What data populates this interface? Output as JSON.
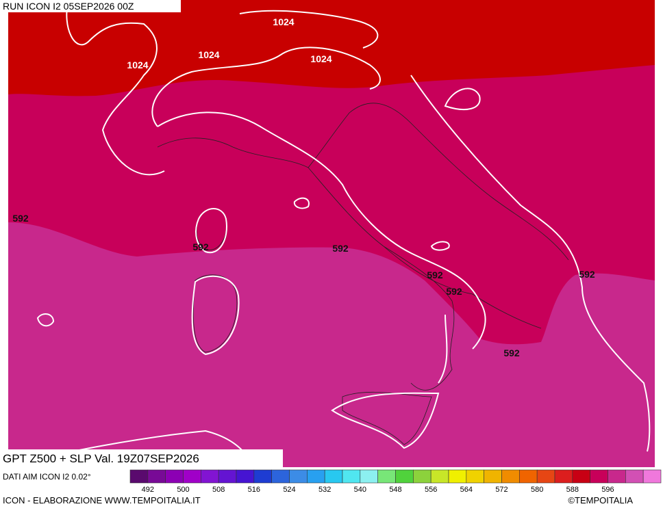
{
  "header": {
    "run": "RUN ICON I2 05SEP2026 00Z"
  },
  "map": {
    "contour_labels": [
      "1024",
      "1024",
      "1024",
      "1024",
      "592",
      "592",
      "592",
      "592",
      "592",
      "592",
      "592"
    ]
  },
  "footer": {
    "title": "GPT Z500 + SLP Val. 19Z07SEP2026",
    "source": "DATI AIM ICON I2 0.02°",
    "credit": "ICON - ELABORAZIONE WWW.TEMPOITALIA.IT",
    "copyright": "©TEMPOITALIA"
  },
  "legend": {
    "colors": [
      "#5a0a6e",
      "#780a96",
      "#8c00b4",
      "#a000c8",
      "#8214d2",
      "#6414d2",
      "#4614d2",
      "#1e3cd2",
      "#2c64dc",
      "#3c8ce6",
      "#28a0f0",
      "#28c8f0",
      "#50e6f0",
      "#8cf0f0",
      "#78e678",
      "#50d23c",
      "#8cd23c",
      "#c8e628",
      "#f0f000",
      "#f0d200",
      "#f0b400",
      "#f08c00",
      "#f06400",
      "#e64614",
      "#dc1e1e",
      "#c80014",
      "#c8005a",
      "#c8288c",
      "#d250b4",
      "#f078dc"
    ],
    "labels": [
      492,
      500,
      508,
      516,
      524,
      532,
      540,
      548,
      556,
      564,
      572,
      580,
      588,
      596
    ]
  }
}
